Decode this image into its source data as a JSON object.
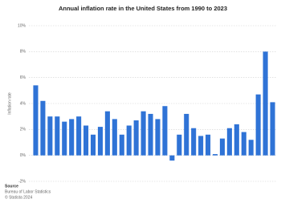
{
  "chart_data": {
    "type": "bar",
    "title": "Annual inflation rate in the United States from 1990 to 2023",
    "y_label": "Inflation rate",
    "values": [
      5.4,
      4.2,
      3.0,
      3.0,
      2.6,
      2.8,
      3.0,
      2.3,
      1.6,
      2.2,
      3.4,
      2.8,
      1.6,
      2.3,
      2.7,
      3.4,
      3.2,
      2.8,
      3.8,
      -0.4,
      1.6,
      3.2,
      2.1,
      1.5,
      1.6,
      0.1,
      1.3,
      2.1,
      2.4,
      1.8,
      1.2,
      4.7,
      8.0,
      4.1
    ],
    "color": "#2f73d6",
    "ylim": [
      -2,
      10
    ],
    "yticks": [
      {
        "value": -2,
        "label": "-2%"
      },
      {
        "value": 0,
        "label": "0%"
      },
      {
        "value": 2,
        "label": "2%"
      },
      {
        "value": 4,
        "label": "4%"
      },
      {
        "value": 6,
        "label": "6%"
      },
      {
        "value": 8,
        "label": "8%"
      },
      {
        "value": 10,
        "label": "10%"
      }
    ],
    "grid": true,
    "source_heading": "Source",
    "source": "Bureau of Labor Statistics",
    "copyright": "© Statista 2024"
  }
}
